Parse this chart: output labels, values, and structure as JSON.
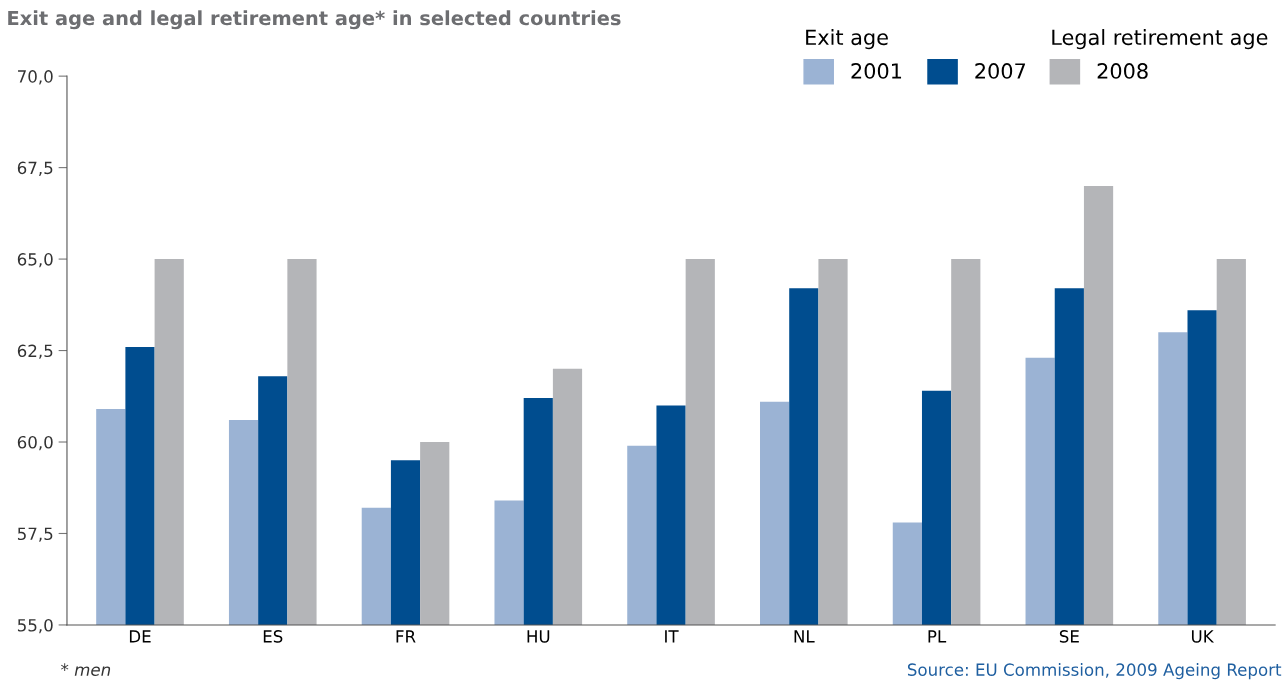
{
  "chart_data": {
    "type": "bar",
    "title": "Exit age and legal retirement age* in selected countries",
    "categories": [
      "DE",
      "ES",
      "FR",
      "HU",
      "IT",
      "NL",
      "PL",
      "SE",
      "UK"
    ],
    "series": [
      {
        "name": "2001",
        "color": "#9bb3d4",
        "values": [
          60.9,
          60.6,
          58.2,
          58.4,
          59.9,
          61.1,
          57.8,
          62.3,
          63.0
        ]
      },
      {
        "name": "2007",
        "color": "#004d8f",
        "values": [
          62.6,
          61.8,
          59.5,
          61.2,
          61.0,
          64.2,
          61.4,
          64.2,
          63.6
        ]
      },
      {
        "name": "2008",
        "color": "#b4b5b8",
        "values": [
          65.0,
          65.0,
          60.0,
          62.0,
          65.0,
          65.0,
          65.0,
          67.0,
          65.0
        ]
      }
    ],
    "ylim": [
      55,
      70
    ],
    "yticks": [
      {
        "value": 55,
        "label": "55,0"
      },
      {
        "value": 57.5,
        "label": "57,5"
      },
      {
        "value": 60,
        "label": "60,0"
      },
      {
        "value": 62.5,
        "label": "62,5"
      },
      {
        "value": 65,
        "label": "65,0"
      },
      {
        "value": 67.5,
        "label": "67,5"
      },
      {
        "value": 70,
        "label": "70,0"
      }
    ],
    "grid": false,
    "legend": "top right",
    "annotations": [
      "Exit age",
      "Legal retirement age",
      "* men",
      "Source: EU Commission, 2009 Ageing Report"
    ]
  }
}
